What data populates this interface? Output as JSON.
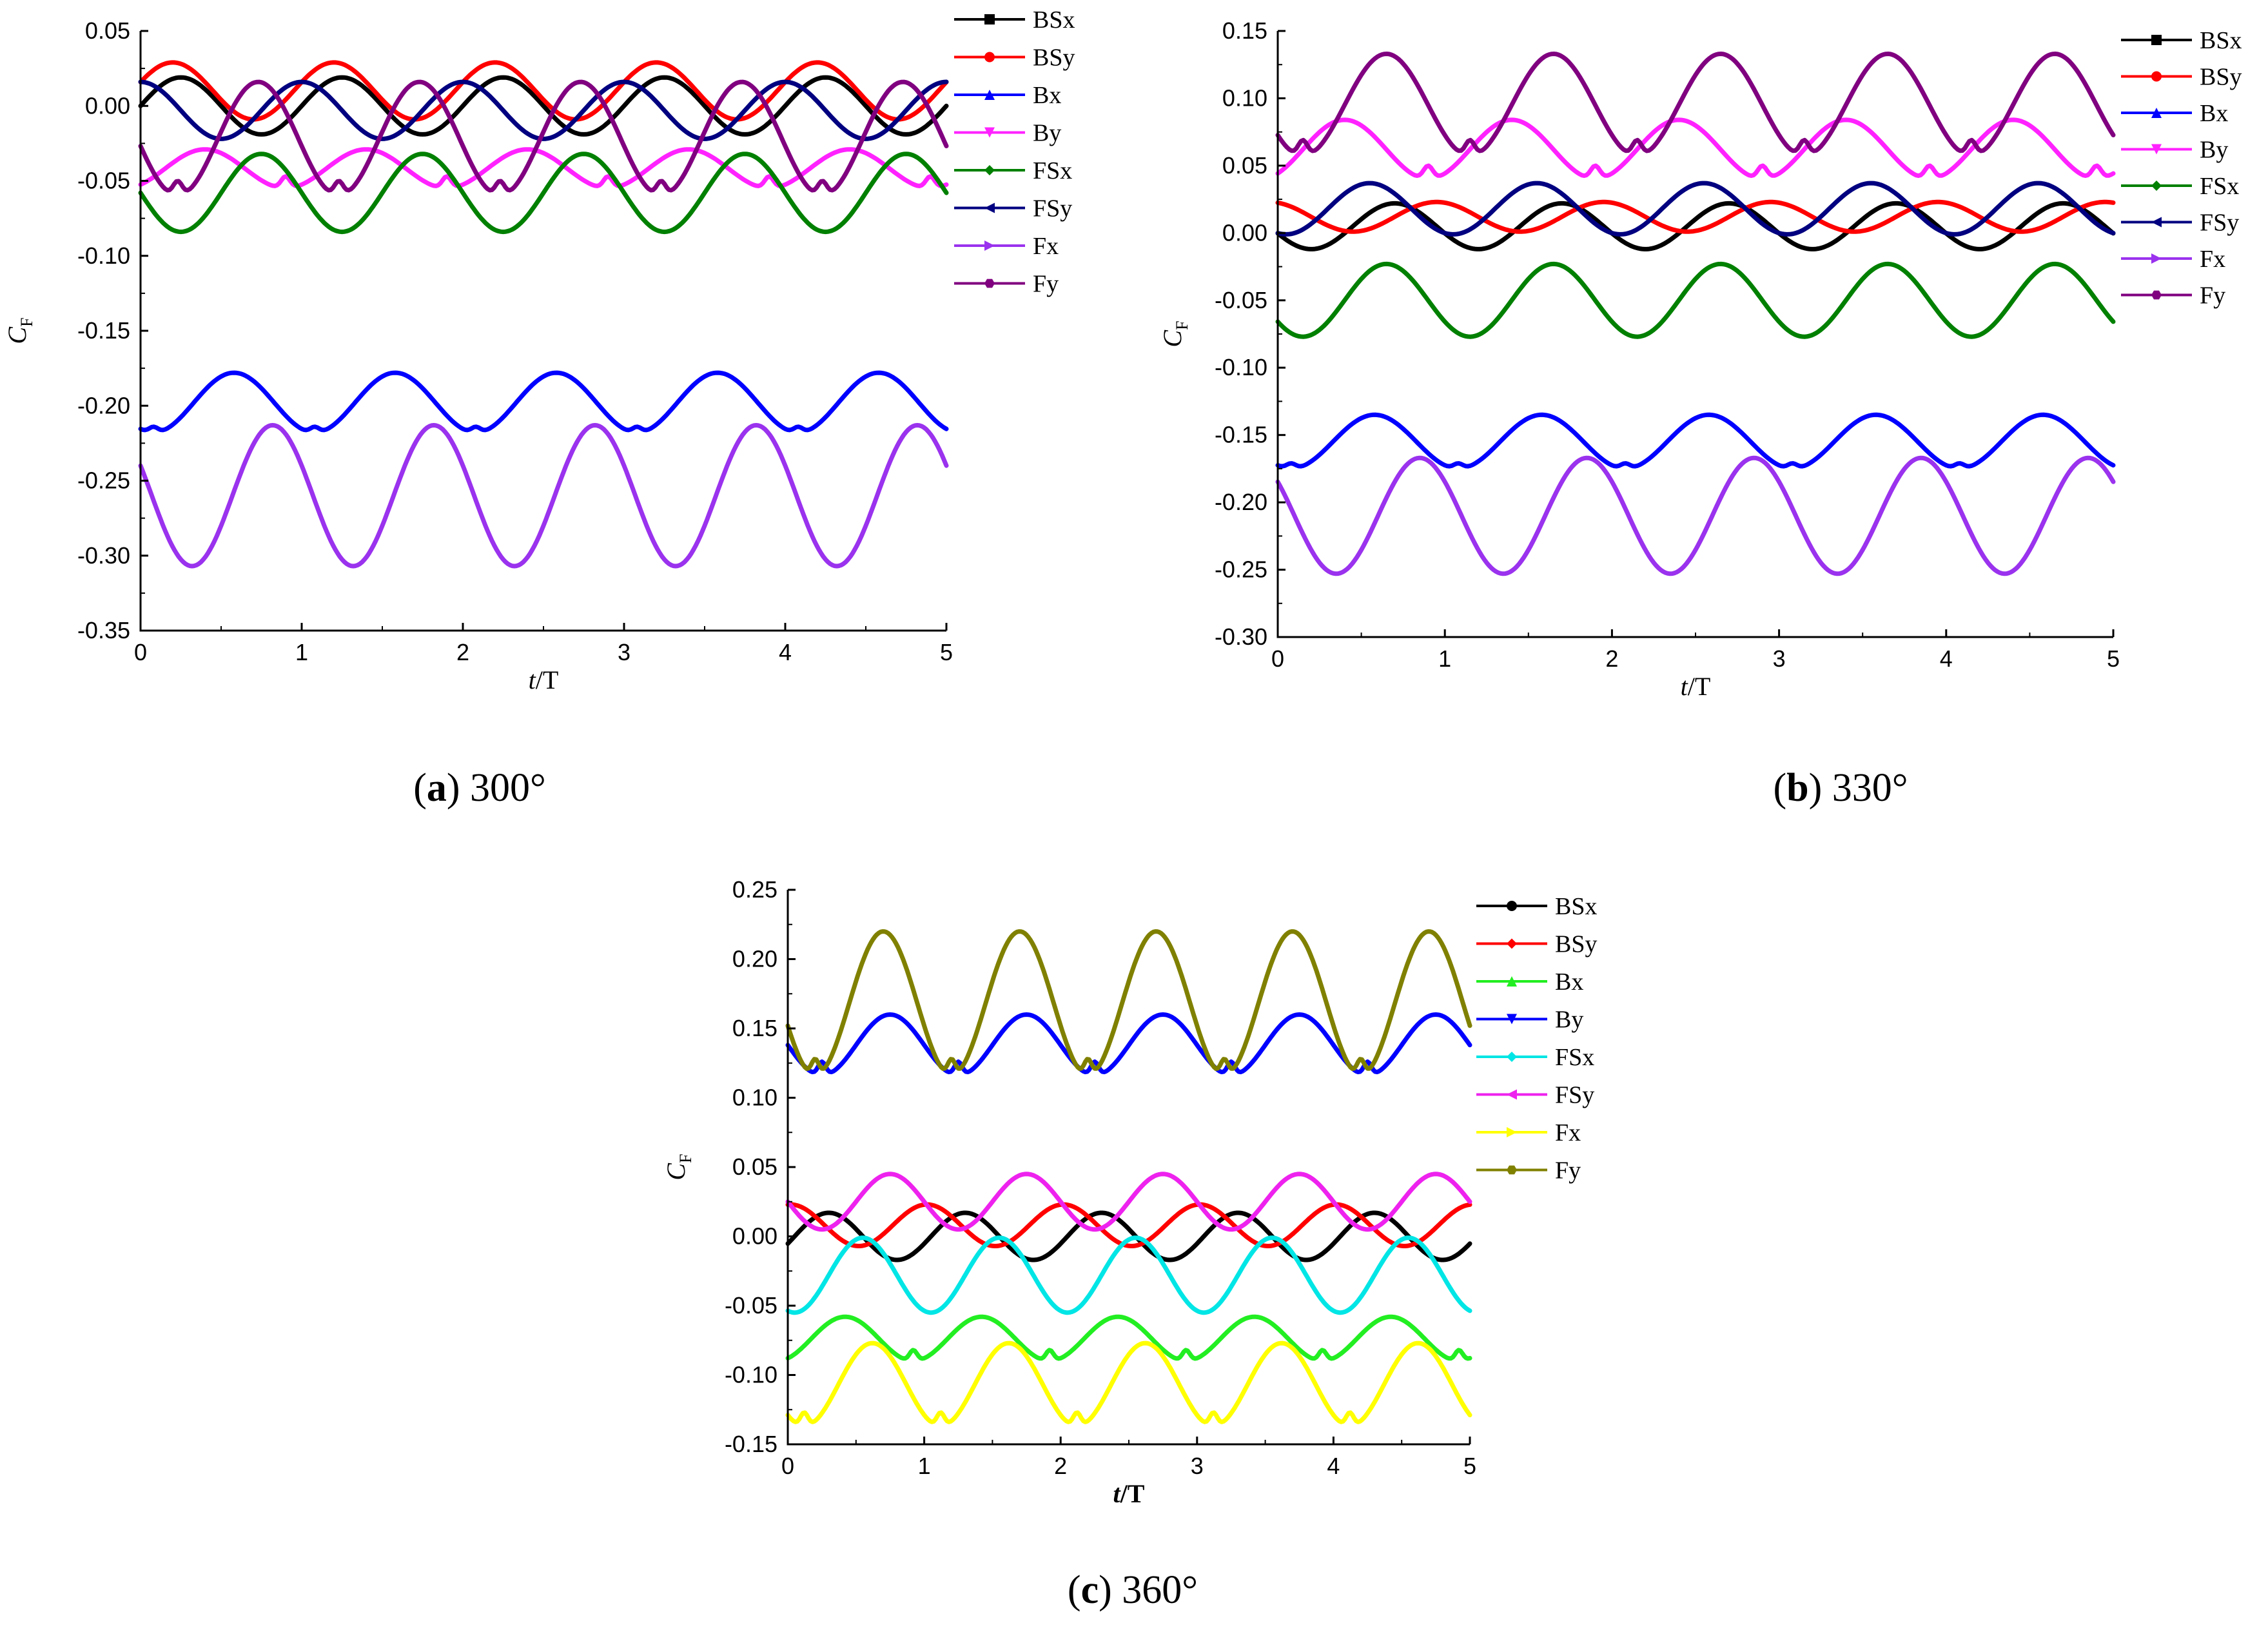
{
  "chart_data": [
    {
      "type": "line",
      "caption": {
        "letter": "a",
        "angle": "300°"
      },
      "xlabel": {
        "italic": "t",
        "rest": "/T"
      },
      "ylabel": {
        "main": "C",
        "sub": "F"
      },
      "xlim": [
        0,
        5
      ],
      "ylim": [
        -0.35,
        0.05
      ],
      "xticks": [
        0,
        1,
        2,
        3,
        4,
        5
      ],
      "xtick_labels": [
        "0",
        "1",
        "2",
        "3",
        "4",
        "5"
      ],
      "yticks": [
        0.05,
        0.0,
        -0.05,
        -0.1,
        -0.15,
        -0.2,
        -0.25,
        -0.3,
        -0.35
      ],
      "ytick_labels": [
        "0.05",
        "0.00",
        "-0.05",
        "-0.10",
        "-0.15",
        "-0.20",
        "-0.25",
        "-0.30",
        "-0.35"
      ],
      "legend_position": "top-right",
      "series": [
        {
          "name": "BSx",
          "color": "#000000",
          "marker": "square",
          "mean": 0.0,
          "amp": 0.019,
          "phase": 0.25,
          "cusp": 0.0
        },
        {
          "name": "BSy",
          "color": "#ff0000",
          "marker": "circle",
          "mean": 0.01,
          "amp": 0.019,
          "phase": 0.2,
          "cusp": 0.0
        },
        {
          "name": "Bx",
          "color": "#0000ff",
          "marker": "triangle-up",
          "mean": -0.198,
          "amp": 0.02,
          "phase": 0.58,
          "cusp": 0.004
        },
        {
          "name": "By",
          "color": "#ff22ff",
          "marker": "triangle-down",
          "mean": -0.042,
          "amp": 0.013,
          "phase": 0.4,
          "cusp": 0.008
        },
        {
          "name": "FSx",
          "color": "#008000",
          "marker": "diamond",
          "mean": -0.058,
          "amp": 0.026,
          "phase": 0.75,
          "cusp": 0.0
        },
        {
          "name": "FSy",
          "color": "#000080",
          "marker": "triangle-left",
          "mean": -0.003,
          "amp": 0.019,
          "phase": 0.0,
          "cusp": 0.0
        },
        {
          "name": "Fx",
          "color": "#9a32ee",
          "marker": "triangle-right",
          "mean": -0.26,
          "amp": 0.047,
          "phase": 0.82,
          "cusp": 0.0
        },
        {
          "name": "Fy",
          "color": "#800080",
          "marker": "hexagon",
          "mean": -0.022,
          "amp": 0.038,
          "phase": 0.73,
          "cusp": 0.01
        }
      ]
    },
    {
      "type": "line",
      "caption": {
        "letter": "b",
        "angle": "330°"
      },
      "xlabel": {
        "italic": "t",
        "rest": "/T"
      },
      "ylabel": {
        "main": "C",
        "sub": "F"
      },
      "xlim": [
        0,
        5
      ],
      "ylim": [
        -0.3,
        0.15
      ],
      "xticks": [
        0,
        1,
        2,
        3,
        4,
        5
      ],
      "xtick_labels": [
        "0",
        "1",
        "2",
        "3",
        "4",
        "5"
      ],
      "yticks": [
        0.15,
        0.1,
        0.05,
        0.0,
        -0.05,
        -0.1,
        -0.15,
        -0.2,
        -0.25,
        -0.3
      ],
      "ytick_labels": [
        "0.15",
        "0.10",
        "0.05",
        "0.00",
        "-0.05",
        "-0.10",
        "-0.15",
        "-0.20",
        "-0.25",
        "-0.30"
      ],
      "legend_position": "top-right",
      "series": [
        {
          "name": "BSx",
          "color": "#000000",
          "marker": "square",
          "mean": 0.005,
          "amp": 0.017,
          "phase": 0.7,
          "cusp": 0.0
        },
        {
          "name": "BSy",
          "color": "#ff0000",
          "marker": "circle",
          "mean": 0.012,
          "amp": 0.011,
          "phase": 0.95,
          "cusp": 0.0
        },
        {
          "name": "Bx",
          "color": "#0000ff",
          "marker": "triangle-up",
          "mean": -0.155,
          "amp": 0.02,
          "phase": 0.58,
          "cusp": 0.004
        },
        {
          "name": "By",
          "color": "#ff22ff",
          "marker": "triangle-down",
          "mean": 0.062,
          "amp": 0.022,
          "phase": 0.4,
          "cusp": 0.01
        },
        {
          "name": "FSx",
          "color": "#008000",
          "marker": "diamond",
          "mean": -0.05,
          "amp": 0.027,
          "phase": 0.65,
          "cusp": 0.0
        },
        {
          "name": "FSy",
          "color": "#000080",
          "marker": "triangle-left",
          "mean": 0.018,
          "amp": 0.019,
          "phase": 0.55,
          "cusp": 0.0
        },
        {
          "name": "Fx",
          "color": "#9a32ee",
          "marker": "triangle-right",
          "mean": -0.21,
          "amp": 0.043,
          "phase": 0.85,
          "cusp": 0.0
        },
        {
          "name": "Fy",
          "color": "#800080",
          "marker": "hexagon",
          "mean": 0.095,
          "amp": 0.038,
          "phase": 0.65,
          "cusp": 0.012
        }
      ]
    },
    {
      "type": "line",
      "caption": {
        "letter": "c",
        "angle": "360°"
      },
      "xlabel": {
        "italic": "t",
        "rest": "/T"
      },
      "ylabel": {
        "main": "C",
        "sub": "F"
      },
      "xlim": [
        0,
        5
      ],
      "ylim": [
        -0.15,
        0.25
      ],
      "xticks": [
        0,
        1,
        2,
        3,
        4,
        5
      ],
      "xtick_labels": [
        "0",
        "1",
        "2",
        "3",
        "4",
        "5"
      ],
      "yticks": [
        0.25,
        0.2,
        0.15,
        0.1,
        0.05,
        0.0,
        -0.05,
        -0.1,
        -0.15
      ],
      "ytick_labels": [
        "0.25",
        "0.20",
        "0.15",
        "0.10",
        "0.05",
        "0.00",
        "-0.05",
        "-0.10",
        "-0.15"
      ],
      "legend_position": "top-right",
      "series": [
        {
          "name": "BSx",
          "color": "#000000",
          "marker": "circle",
          "mean": 0.0,
          "amp": 0.017,
          "phase": 0.3,
          "cusp": 0.0
        },
        {
          "name": "BSy",
          "color": "#ff0000",
          "marker": "diamond",
          "mean": 0.008,
          "amp": 0.015,
          "phase": 0.02,
          "cusp": 0.0
        },
        {
          "name": "Bx",
          "color": "#22ee22",
          "marker": "triangle-up",
          "mean": -0.074,
          "amp": 0.016,
          "phase": 0.42,
          "cusp": 0.008
        },
        {
          "name": "By",
          "color": "#0000ff",
          "marker": "triangle-down",
          "mean": 0.138,
          "amp": 0.022,
          "phase": 0.75,
          "cusp": 0.01
        },
        {
          "name": "FSx",
          "color": "#00e5e5",
          "marker": "diamond",
          "mean": -0.028,
          "amp": 0.027,
          "phase": 0.55,
          "cusp": 0.0
        },
        {
          "name": "FSy",
          "color": "#ee22ee",
          "marker": "triangle-left",
          "mean": 0.025,
          "amp": 0.02,
          "phase": 0.75,
          "cusp": 0.0
        },
        {
          "name": "Fx",
          "color": "#ffff00",
          "marker": "triangle-right",
          "mean": -0.107,
          "amp": 0.03,
          "phase": 0.62,
          "cusp": 0.01
        },
        {
          "name": "Fy",
          "color": "#808000",
          "marker": "hexagon",
          "mean": 0.168,
          "amp": 0.052,
          "phase": 0.7,
          "cusp": 0.012
        }
      ]
    }
  ]
}
